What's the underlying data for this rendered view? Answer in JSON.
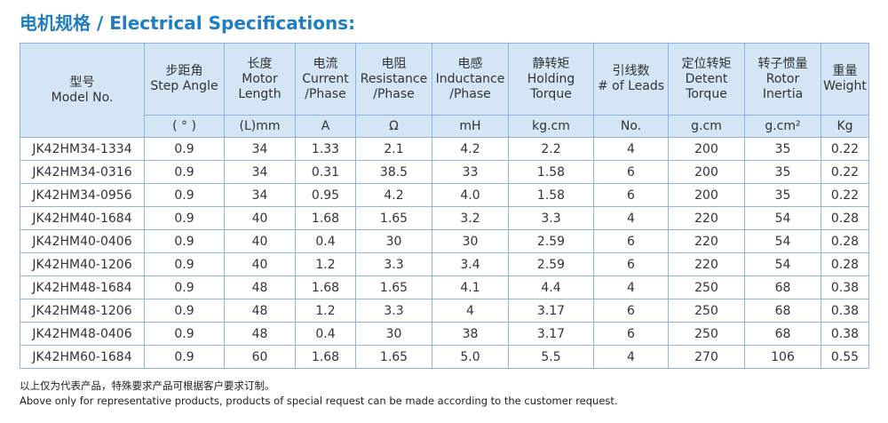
{
  "title": "电机规格 / Electrical Specifications:",
  "header": {
    "columns": [
      [
        "型号",
        "Model No."
      ],
      [
        "步距角",
        "Step Angle"
      ],
      [
        "长度",
        "Motor",
        "Length"
      ],
      [
        "电流",
        "Current",
        "/Phase"
      ],
      [
        "电阻",
        "Resistance",
        "/Phase"
      ],
      [
        "电感",
        "Inductance",
        "/Phase"
      ],
      [
        "静转矩",
        "Holding",
        "Torque"
      ],
      [
        "引线数",
        "# of Leads"
      ],
      [
        "定位转矩",
        "Detent",
        "Torque"
      ],
      [
        "转子惯量",
        "Rotor",
        "Inertia"
      ],
      [
        "重量",
        "Weight"
      ]
    ],
    "units": [
      "( ° )",
      "(L)mm",
      "A",
      "Ω",
      "mH",
      "kg.cm",
      "No.",
      "g.cm",
      "g.cm²",
      "Kg"
    ]
  },
  "table": {
    "rows": [
      [
        "JK42HM34-1334",
        "0.9",
        "34",
        "1.33",
        "2.1",
        "4.2",
        "2.2",
        "4",
        "200",
        "35",
        "0.22"
      ],
      [
        "JK42HM34-0316",
        "0.9",
        "34",
        "0.31",
        "38.5",
        "33",
        "1.58",
        "6",
        "200",
        "35",
        "0.22"
      ],
      [
        "JK42HM34-0956",
        "0.9",
        "34",
        "0.95",
        "4.2",
        "4.0",
        "1.58",
        "6",
        "200",
        "35",
        "0.22"
      ],
      [
        "JK42HM40-1684",
        "0.9",
        "40",
        "1.68",
        "1.65",
        "3.2",
        "3.3",
        "4",
        "220",
        "54",
        "0.28"
      ],
      [
        "JK42HM40-0406",
        "0.9",
        "40",
        "0.4",
        "30",
        "30",
        "2.59",
        "6",
        "220",
        "54",
        "0.28"
      ],
      [
        "JK42HM40-1206",
        "0.9",
        "40",
        "1.2",
        "3.3",
        "3.4",
        "2.59",
        "6",
        "220",
        "54",
        "0.28"
      ],
      [
        "JK42HM48-1684",
        "0.9",
        "48",
        "1.68",
        "1.65",
        "4.1",
        "4.4",
        "4",
        "250",
        "68",
        "0.38"
      ],
      [
        "JK42HM48-1206",
        "0.9",
        "48",
        "1.2",
        "3.3",
        "4",
        "3.17",
        "6",
        "250",
        "68",
        "0.38"
      ],
      [
        "JK42HM48-0406",
        "0.9",
        "48",
        "0.4",
        "30",
        "38",
        "3.17",
        "6",
        "250",
        "68",
        "0.38"
      ],
      [
        "JK42HM60-1684",
        "0.9",
        "60",
        "1.68",
        "1.65",
        "5.0",
        "5.5",
        "4",
        "270",
        "106",
        "0.55"
      ]
    ]
  },
  "notes": [
    "以上仅为代表产品，特殊要求产品可根据客户要求订制。",
    "Above only for representative products, products of special request can be made according to the customer request."
  ]
}
